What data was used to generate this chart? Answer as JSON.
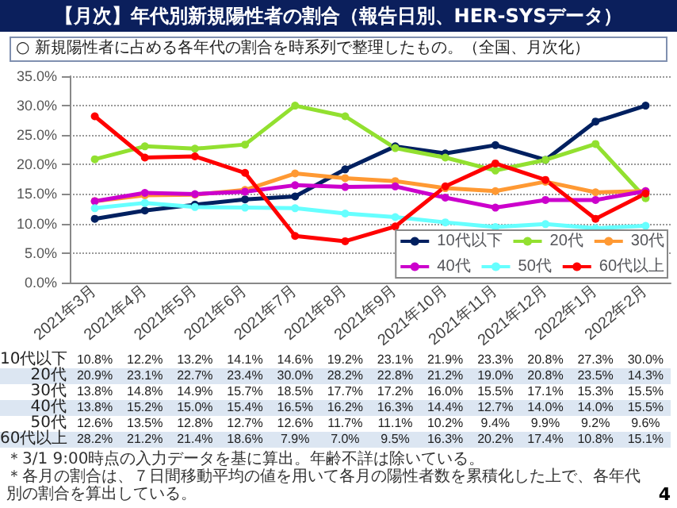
{
  "chart_data": {
    "type": "line",
    "title": "【月次】年代別新規陽性者の割合（報告日別、HER-SYSデータ）",
    "subtitle": "○ 新規陽性者に占める各年代の割合を時系列で整理したもの。（全国、月次化）",
    "categories": [
      "2021年3月",
      "2021年4月",
      "2021年5月",
      "2021年6月",
      "2021年7月",
      "2021年8月",
      "2021年9月",
      "2021年10月",
      "2021年11月",
      "2021年12月",
      "2022年1月",
      "2022年2月"
    ],
    "series": [
      {
        "name": "10代以下",
        "color": "#002060",
        "values": [
          10.8,
          12.2,
          13.2,
          14.1,
          14.6,
          19.2,
          23.1,
          21.9,
          23.3,
          20.8,
          27.3,
          30.0
        ],
        "value_labels": [
          "10.8%",
          "12.2%",
          "13.2%",
          "14.1%",
          "14.6%",
          "19.2%",
          "23.1%",
          "21.9%",
          "23.3%",
          "20.8%",
          "27.3%",
          "30.0%"
        ]
      },
      {
        "name": "20代",
        "color": "#92e030",
        "values": [
          20.9,
          23.1,
          22.7,
          23.4,
          30.0,
          28.2,
          22.8,
          21.2,
          19.0,
          20.8,
          23.5,
          14.3
        ],
        "value_labels": [
          "20.9%",
          "23.1%",
          "22.7%",
          "23.4%",
          "30.0%",
          "28.2%",
          "22.8%",
          "21.2%",
          "19.0%",
          "20.8%",
          "23.5%",
          "14.3%"
        ]
      },
      {
        "name": "30代",
        "color": "#ff9933",
        "values": [
          13.8,
          14.8,
          14.9,
          15.7,
          18.5,
          17.7,
          17.2,
          16.0,
          15.5,
          17.1,
          15.3,
          15.5
        ],
        "value_labels": [
          "13.8%",
          "14.8%",
          "14.9%",
          "15.7%",
          "18.5%",
          "17.7%",
          "17.2%",
          "16.0%",
          "15.5%",
          "17.1%",
          "15.3%",
          "15.5%"
        ]
      },
      {
        "name": "40代",
        "color": "#cc00cc",
        "values": [
          13.8,
          15.2,
          15.0,
          15.4,
          16.5,
          16.2,
          16.3,
          14.4,
          12.7,
          14.0,
          14.0,
          15.5
        ],
        "value_labels": [
          "13.8%",
          "15.2%",
          "15.0%",
          "15.4%",
          "16.5%",
          "16.2%",
          "16.3%",
          "14.4%",
          "12.7%",
          "14.0%",
          "14.0%",
          "15.5%"
        ]
      },
      {
        "name": "50代",
        "color": "#66ffff",
        "values": [
          12.6,
          13.5,
          12.8,
          12.7,
          12.6,
          11.7,
          11.1,
          10.2,
          9.4,
          9.9,
          9.2,
          9.6
        ],
        "value_labels": [
          "12.6%",
          "13.5%",
          "12.8%",
          "12.7%",
          "12.6%",
          "11.7%",
          "11.1%",
          "10.2%",
          "9.4%",
          "9.9%",
          "9.2%",
          "9.6%"
        ]
      },
      {
        "name": "60代以上",
        "color": "#ff0000",
        "values": [
          28.2,
          21.2,
          21.4,
          18.6,
          7.9,
          7.0,
          9.5,
          16.3,
          20.2,
          17.4,
          10.8,
          15.1
        ],
        "value_labels": [
          "28.2%",
          "21.2%",
          "21.4%",
          "18.6%",
          "7.9%",
          "7.0%",
          "9.5%",
          "16.3%",
          "20.2%",
          "17.4%",
          "10.8%",
          "15.1%"
        ]
      }
    ],
    "ylim": [
      0,
      35
    ],
    "yticks": [
      {
        "value": 0,
        "label": "0.0%"
      },
      {
        "value": 5,
        "label": "5.0%"
      },
      {
        "value": 10,
        "label": "10.0%"
      },
      {
        "value": 15,
        "label": "15.0%"
      },
      {
        "value": 20,
        "label": "20.0%"
      },
      {
        "value": 25,
        "label": "25.0%"
      },
      {
        "value": 30,
        "label": "30.0%"
      },
      {
        "value": 35,
        "label": "35.0%"
      }
    ],
    "grid": "y",
    "legend": "right",
    "marker": "circle",
    "line_style": "solid",
    "annotations": [
      "＊3/1 9:00時点の入力データを基に算出。年齢不詳は除いている。",
      "＊各月の割合は、７日間移動平均の値を用いて各月の陽性者数を累積化した上で、各年代別の割合を算出している。",
      "4"
    ]
  }
}
